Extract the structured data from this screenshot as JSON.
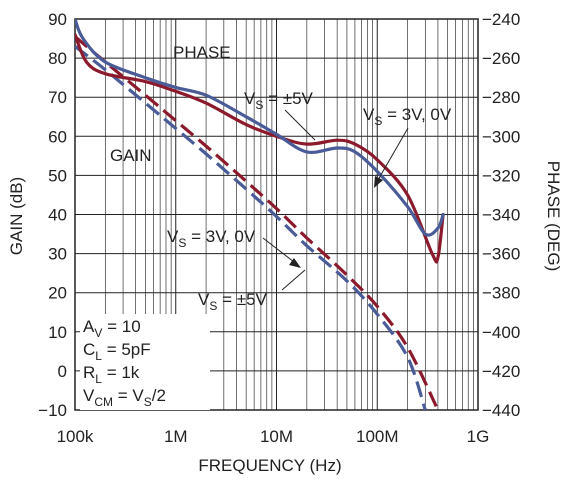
{
  "chart_data": {
    "type": "line",
    "xlabel": "FREQUENCY (Hz)",
    "ylabel_left": "GAIN (dB)",
    "ylabel_right": "PHASE (DEG)",
    "x_scale": "log",
    "xlim": [
      100000,
      1000000000
    ],
    "ylim_left": [
      -10,
      90
    ],
    "ylim_right": [
      -440,
      -240
    ],
    "grid": true,
    "x_ticks": [
      "100k",
      "1M",
      "10M",
      "100M",
      "1G"
    ],
    "y_ticks_left": [
      "90",
      "80",
      "70",
      "60",
      "50",
      "40",
      "30",
      "20",
      "10",
      "0",
      "−10"
    ],
    "y_ticks_right": [
      "−240",
      "−260",
      "−280",
      "−300",
      "−320",
      "−340",
      "−360",
      "−380",
      "−400",
      "−420",
      "−440"
    ],
    "colors": {
      "vs5": "#8b1a2c",
      "vs3": "#4a5c98"
    },
    "series": [
      {
        "name": "V_S = ±5V",
        "group": "GAIN",
        "axis": "left",
        "style": "dashed",
        "color_key": "vs5",
        "x": [
          100000,
          200000,
          500000,
          1000000,
          2000000,
          5000000,
          10000000,
          20000000,
          50000000,
          100000000,
          200000000,
          400000000
        ],
        "y": [
          85.5,
          79,
          70.5,
          64,
          57.5,
          48.5,
          41.5,
          34,
          24.5,
          16.5,
          6,
          -10
        ]
      },
      {
        "name": "V_S = 3V, 0V",
        "group": "GAIN",
        "axis": "left",
        "style": "dashed",
        "color_key": "vs3",
        "x": [
          100000,
          200000,
          500000,
          1000000,
          2000000,
          5000000,
          10000000,
          20000000,
          50000000,
          100000000,
          200000000,
          300000000
        ],
        "y": [
          83,
          77,
          68.5,
          62,
          55.5,
          46.5,
          39.5,
          32,
          23,
          14.5,
          3.5,
          -10
        ]
      },
      {
        "name": "V_S = ±5V",
        "group": "PHASE",
        "axis": "right",
        "style": "solid",
        "color_key": "vs5",
        "x": [
          100000,
          130000,
          200000,
          500000,
          1000000,
          2000000,
          5000000,
          10000000,
          20000000,
          40000000,
          60000000,
          100000000,
          200000000,
          350000000,
          400000000,
          450000000
        ],
        "y": [
          -248,
          -262,
          -268,
          -272,
          -277,
          -283,
          -294,
          -300,
          -304,
          -302,
          -304,
          -312,
          -330,
          -360,
          -362,
          -340
        ]
      },
      {
        "name": "V_S = 3V, 0V",
        "group": "PHASE",
        "axis": "right",
        "style": "solid",
        "color_key": "vs3",
        "x": [
          100000,
          120000,
          200000,
          500000,
          1000000,
          2000000,
          5000000,
          10000000,
          20000000,
          40000000,
          60000000,
          100000000,
          200000000,
          300000000,
          400000000,
          450000000
        ],
        "y": [
          -240,
          -250,
          -262,
          -270,
          -275,
          -279,
          -290,
          -299,
          -308,
          -306,
          -308,
          -318,
          -336,
          -350,
          -347,
          -340
        ]
      }
    ],
    "annotations": {
      "phase": "PHASE",
      "gain": "GAIN",
      "vs_pm5_phase": {
        "main": "V",
        "sub": "S",
        "rest": " = ±5V"
      },
      "vs_3v_phase": {
        "main": "V",
        "sub": "S",
        "rest": " = 3V, 0V"
      },
      "vs_3v_gain": {
        "main": "V",
        "sub": "S",
        "rest": " = 3V, 0V"
      },
      "vs_pm5_gain": {
        "main": "V",
        "sub": "S",
        "rest": " = ±5V"
      }
    },
    "conditions": [
      {
        "main": "A",
        "sub": "V",
        "rest": " = 10"
      },
      {
        "main": "C",
        "sub": "L",
        "rest": " = 5pF"
      },
      {
        "main": "R",
        "sub": "L",
        "rest": " = 1k"
      },
      {
        "main": "V",
        "sub": "CM",
        "rest": " = V",
        "sub2": "S",
        "rest2": "/2"
      }
    ]
  }
}
